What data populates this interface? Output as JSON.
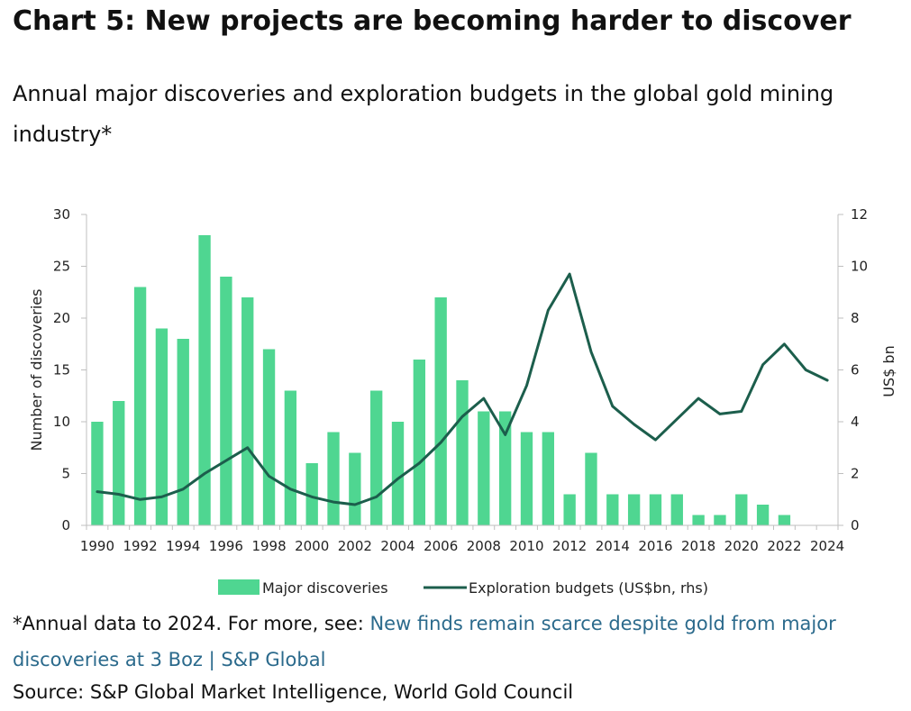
{
  "title": "Chart 5: New projects are becoming harder to discover",
  "subtitle": "Annual major discoveries and exploration budgets in the global gold mining industry*",
  "footnote": {
    "prefix": "*Annual data to 2024. For more, see: ",
    "link_text": "New finds remain scarce despite gold from major discoveries at 3 Boz | S&P Global"
  },
  "source": "Source: S&P Global Market Intelligence, World Gold Council",
  "colors": {
    "bar": "#4fd691",
    "line": "#1c5e4c",
    "link": "#2b6a8c"
  },
  "chart_data": {
    "type": "bar+line",
    "years": [
      1990,
      1991,
      1992,
      1993,
      1994,
      1995,
      1996,
      1997,
      1998,
      1999,
      2000,
      2001,
      2002,
      2003,
      2004,
      2005,
      2006,
      2007,
      2008,
      2009,
      2010,
      2011,
      2012,
      2013,
      2014,
      2015,
      2016,
      2017,
      2018,
      2019,
      2020,
      2021,
      2022,
      2023,
      2024
    ],
    "x_tick_labels": [
      "1990",
      "1992",
      "1994",
      "1996",
      "1998",
      "2000",
      "2002",
      "2004",
      "2006",
      "2008",
      "2010",
      "2012",
      "2014",
      "2016",
      "2018",
      "2020",
      "2022",
      "2024"
    ],
    "series": [
      {
        "name": "Major discoveries",
        "type": "bar",
        "axis": "left",
        "values": [
          10,
          12,
          23,
          19,
          18,
          28,
          24,
          22,
          17,
          13,
          6,
          9,
          7,
          13,
          10,
          16,
          22,
          14,
          11,
          11,
          9,
          9,
          3,
          7,
          3,
          3,
          3,
          3,
          1,
          1,
          3,
          2,
          1,
          null,
          null
        ]
      },
      {
        "name": "Exploration budgets (US$bn, rhs)",
        "type": "line",
        "axis": "right",
        "values": [
          1.3,
          1.2,
          1.0,
          1.1,
          1.4,
          2.0,
          2.5,
          3.0,
          1.9,
          1.4,
          1.1,
          0.9,
          0.8,
          1.1,
          1.8,
          2.4,
          3.2,
          4.2,
          4.9,
          3.5,
          5.4,
          8.3,
          9.7,
          6.7,
          4.6,
          3.9,
          3.3,
          4.1,
          4.9,
          4.3,
          4.4,
          6.2,
          7.0,
          6.0,
          5.6
        ]
      }
    ],
    "left_axis": {
      "label": "Number of discoveries",
      "min": 0,
      "max": 30,
      "ticks": [
        0,
        5,
        10,
        15,
        20,
        25,
        30
      ]
    },
    "right_axis": {
      "label": "US$ bn",
      "min": 0,
      "max": 12,
      "ticks": [
        0,
        2,
        4,
        6,
        8,
        10,
        12
      ]
    },
    "legend": [
      "Major discoveries",
      "Exploration budgets (US$bn, rhs)"
    ],
    "legend_position": "bottom"
  }
}
